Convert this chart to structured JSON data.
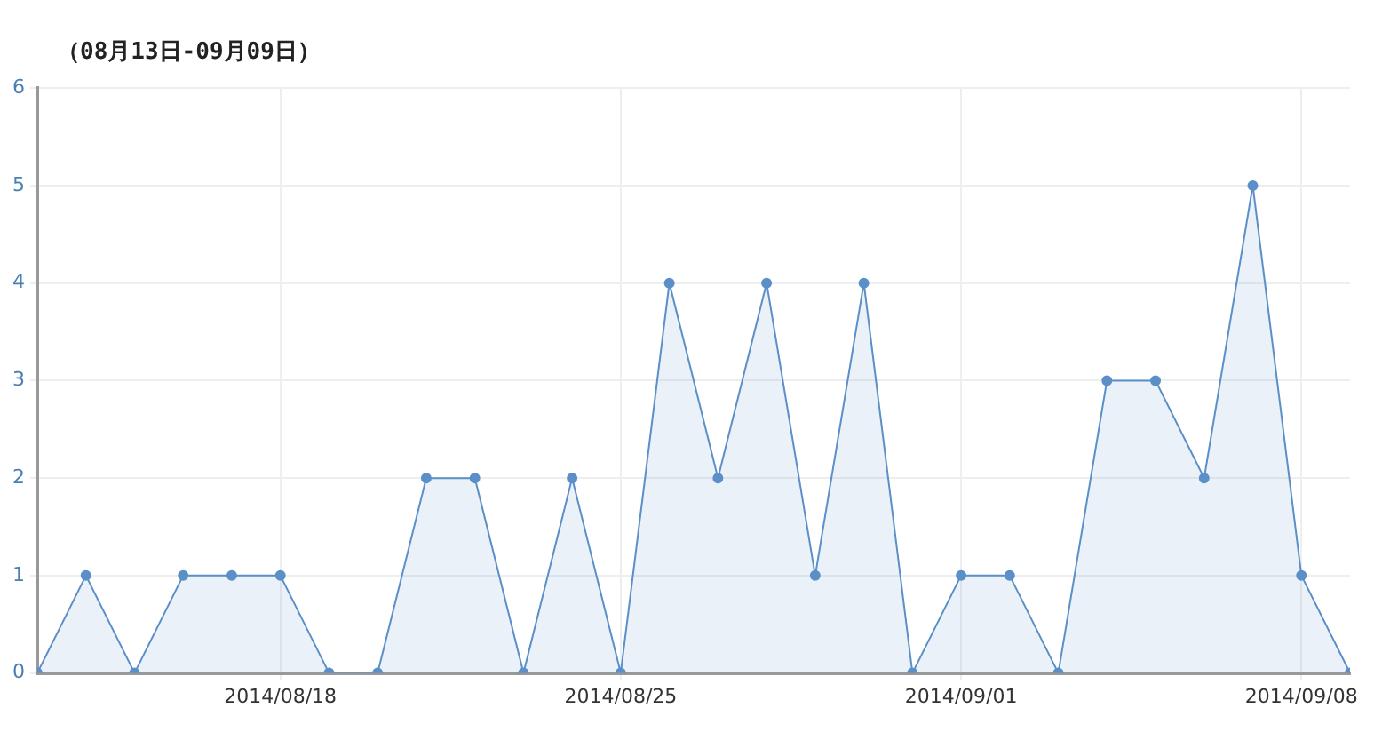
{
  "chart_data": {
    "type": "area",
    "title": "（08月13日-09月09日）",
    "x": [
      "2014-08-13",
      "2014-08-14",
      "2014-08-15",
      "2014-08-16",
      "2014-08-17",
      "2014-08-18",
      "2014-08-19",
      "2014-08-20",
      "2014-08-21",
      "2014-08-22",
      "2014-08-23",
      "2014-08-24",
      "2014-08-25",
      "2014-08-26",
      "2014-08-27",
      "2014-08-28",
      "2014-08-29",
      "2014-08-30",
      "2014-08-31",
      "2014-09-01",
      "2014-09-02",
      "2014-09-03",
      "2014-09-04",
      "2014-09-05",
      "2014-09-06",
      "2014-09-07",
      "2014-09-08",
      "2014-09-09"
    ],
    "series": [
      {
        "color": "#5b8fc8",
        "values": [
          0,
          1,
          0,
          1,
          1,
          1,
          0,
          0,
          2,
          2,
          0,
          2,
          0,
          4,
          2,
          4,
          1,
          4,
          0,
          1,
          1,
          0,
          3,
          3,
          2,
          5,
          1,
          0
        ]
      }
    ],
    "xlim": [
      "2014-08-13",
      "2014-09-09"
    ],
    "xticks": [
      {
        "value": "2014-08-18",
        "label": "2014/08/18"
      },
      {
        "value": "2014-08-25",
        "label": "2014/08/25"
      },
      {
        "value": "2014-09-01",
        "label": "2014/09/01"
      },
      {
        "value": "2014-09-08",
        "label": "2014/09/08"
      }
    ],
    "ylim": [
      0,
      6
    ],
    "yticks": [
      0,
      1,
      2,
      3,
      4,
      5,
      6
    ],
    "grid": true,
    "marker": "circle",
    "line_style": "solid",
    "legend": false
  }
}
